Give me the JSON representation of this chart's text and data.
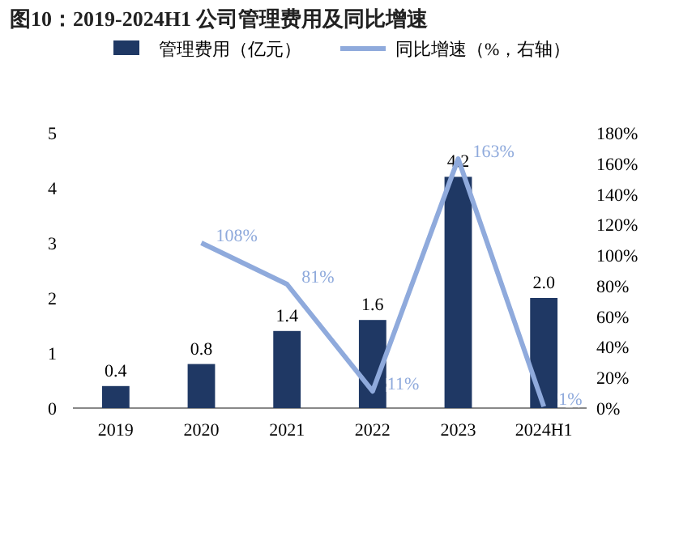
{
  "chart_data": {
    "type": "bar",
    "title": "图10：2019-2024H1 公司管理费用及同比增速",
    "categories": [
      "2019",
      "2020",
      "2021",
      "2022",
      "2023",
      "2024H1"
    ],
    "series": [
      {
        "name": "管理费用（亿元）",
        "color": "#1f3864",
        "values": [
          0.4,
          0.8,
          1.4,
          1.6,
          4.2,
          2.0
        ],
        "value_labels": [
          "0.4",
          "0.8",
          "1.4",
          "1.6",
          "4.2",
          "2.0"
        ]
      },
      {
        "name": "同比增速（%，右轴）",
        "type": "line",
        "axis": "y2",
        "color": "#8faadc",
        "values": [
          null,
          108,
          81,
          11,
          163,
          1
        ],
        "value_labels": [
          null,
          "108%",
          "81%",
          "11%",
          "163%",
          "1%"
        ]
      }
    ],
    "ylim": [
      0,
      5
    ],
    "yticks": [
      0,
      1,
      2,
      3,
      4,
      5
    ],
    "y2lim": [
      0,
      180
    ],
    "y2ticks": [
      {
        "value": 0,
        "label": "0%"
      },
      {
        "value": 20,
        "label": "20%"
      },
      {
        "value": 40,
        "label": "40%"
      },
      {
        "value": 60,
        "label": "60%"
      },
      {
        "value": 80,
        "label": "80%"
      },
      {
        "value": 100,
        "label": "100%"
      },
      {
        "value": 120,
        "label": "120%"
      },
      {
        "value": 140,
        "label": "140%"
      },
      {
        "value": 160,
        "label": "160%"
      },
      {
        "value": 180,
        "label": "180%"
      }
    ],
    "legend": "top",
    "grid": false
  }
}
